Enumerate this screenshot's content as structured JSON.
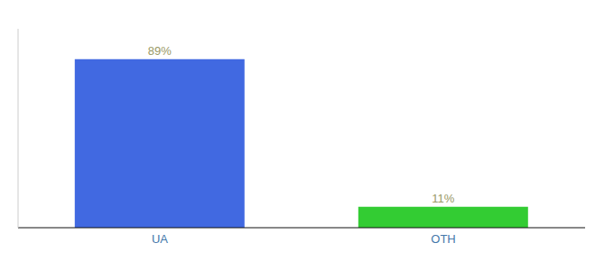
{
  "chart_data": {
    "type": "bar",
    "categories": [
      "UA",
      "OTH"
    ],
    "values": [
      89,
      11
    ],
    "value_labels": [
      "89%",
      "11%"
    ],
    "colors": [
      "#4169e1",
      "#33cc33"
    ],
    "data_labels": true,
    "ylim": [
      0,
      105
    ],
    "tick_labels": "x"
  }
}
